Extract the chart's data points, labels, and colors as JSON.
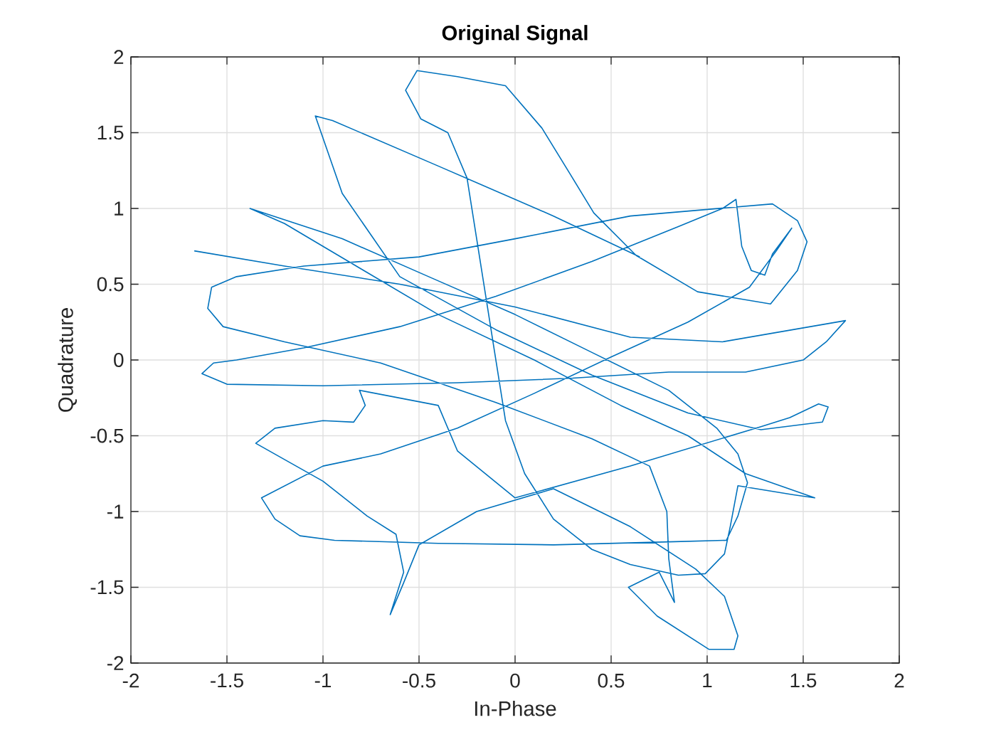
{
  "chart_data": {
    "type": "line",
    "title": "Original Signal",
    "xlabel": "In-Phase",
    "ylabel": "Quadrature",
    "color": "#0072bd",
    "line_style": "solid",
    "grid": true,
    "xlim": [
      -2,
      2
    ],
    "ylim": [
      -2,
      2
    ],
    "xticks": [
      -2,
      -1.5,
      -1,
      -0.5,
      0,
      0.5,
      1,
      1.5,
      2
    ],
    "yticks": [
      -2,
      -1.5,
      -1,
      -0.5,
      0,
      0.5,
      1,
      1.5,
      2
    ],
    "x": [
      -1.67,
      -1.2,
      -0.6,
      0,
      0.6,
      1.08,
      1.72,
      1.62,
      1.5,
      1.2,
      0.8,
      0.3,
      -0.3,
      -1,
      -1.5,
      -1.63,
      -1.57,
      -1.45,
      -1.1,
      -0.6,
      -0.1,
      0.4,
      0.85,
      1.08,
      1.15,
      1.18,
      1.23,
      1.3,
      1.34,
      1.44,
      1.36,
      1.22,
      0.9,
      0.5,
      0.1,
      -0.3,
      -0.7,
      -1,
      -1.32,
      -1.25,
      -1.12,
      -0.94,
      -0.4,
      0.2,
      0.8,
      1.1,
      1.16,
      1.21,
      1.16,
      1.05,
      0.8,
      0.4,
      0,
      -0.45,
      -0.9,
      -1.38,
      -1.2,
      -0.8,
      -0.4,
      0.1,
      0.55,
      0.9,
      1.2,
      1.56,
      1.45,
      1.16,
      1.12,
      1.09,
      0.99,
      0.85,
      0.6,
      0.4,
      0.2,
      0.05,
      -0.05,
      -0.1,
      -0.15,
      -0.2,
      -0.25,
      -0.35,
      -0.49,
      -0.57,
      -0.51,
      -0.3,
      -0.05,
      0.14,
      0.29,
      0.41,
      0.63,
      0.95,
      1.33,
      1.47,
      1.52,
      1.47,
      1.34,
      0.6,
      0,
      -0.5,
      -1.1,
      -1.45,
      -1.58,
      -1.6,
      -1.52,
      -1.2,
      -0.7,
      -0.1,
      0.4,
      0.7,
      0.79,
      0.8,
      0.83,
      0.75,
      0.59,
      0.74,
      1.01,
      1.14,
      1.16,
      1.09,
      0.94,
      0.6,
      0.2,
      -0.2,
      -0.5,
      -0.58,
      -0.65,
      -0.58,
      -0.62,
      -0.77,
      -1,
      -1.35,
      -1.25,
      -1,
      -0.84,
      -0.78,
      -0.81,
      -0.4,
      -0.3,
      0,
      0.6,
      1.28,
      1.43,
      1.58,
      1.63,
      1.6,
      1.53,
      1.28,
      0.9,
      0.4,
      -0.1,
      -0.6,
      -0.9,
      -1.04,
      -0.95,
      -0.4,
      0.2,
      0.65
    ],
    "values": [
      0.72,
      0.62,
      0.5,
      0.35,
      0.15,
      0.12,
      0.26,
      0.12,
      0,
      -0.08,
      -0.08,
      -0.12,
      -0.15,
      -0.17,
      -0.16,
      -0.09,
      -0.02,
      0,
      0.08,
      0.22,
      0.42,
      0.65,
      0.88,
      1,
      1.06,
      0.75,
      0.59,
      0.56,
      0.7,
      0.87,
      0.72,
      0.48,
      0.25,
      0.02,
      -0.22,
      -0.45,
      -0.62,
      -0.7,
      -0.91,
      -1.05,
      -1.16,
      -1.19,
      -1.21,
      -1.22,
      -1.2,
      -1.19,
      -1.03,
      -0.81,
      -0.62,
      -0.45,
      -0.2,
      0.05,
      0.3,
      0.55,
      0.8,
      1,
      0.9,
      0.6,
      0.3,
      0,
      -0.3,
      -0.5,
      -0.75,
      -0.91,
      -0.89,
      -0.83,
      -1.1,
      -1.28,
      -1.41,
      -1.42,
      -1.35,
      -1.25,
      -1.05,
      -0.75,
      -0.4,
      0,
      0.4,
      0.8,
      1.2,
      1.5,
      1.59,
      1.78,
      1.91,
      1.87,
      1.81,
      1.53,
      1.22,
      0.97,
      0.69,
      0.45,
      0.37,
      0.59,
      0.78,
      0.92,
      1.03,
      0.95,
      0.8,
      0.68,
      0.62,
      0.55,
      0.48,
      0.34,
      0.22,
      0.12,
      -0.02,
      -0.28,
      -0.52,
      -0.7,
      -1,
      -1.31,
      -1.6,
      -1.4,
      -1.5,
      -1.69,
      -1.91,
      -1.91,
      -1.82,
      -1.56,
      -1.38,
      -1.1,
      -0.85,
      -1,
      -1.22,
      -1.47,
      -1.68,
      -1.4,
      -1.15,
      -1.03,
      -0.8,
      -0.55,
      -0.45,
      -0.4,
      -0.41,
      -0.3,
      -0.2,
      -0.3,
      -0.6,
      -0.91,
      -0.7,
      -0.44,
      -0.38,
      -0.29,
      -0.31,
      -0.41,
      -0.42,
      -0.46,
      -0.35,
      -0.1,
      0.2,
      0.55,
      1.1,
      1.61,
      1.58,
      1.28,
      0.95,
      0.68
    ]
  }
}
